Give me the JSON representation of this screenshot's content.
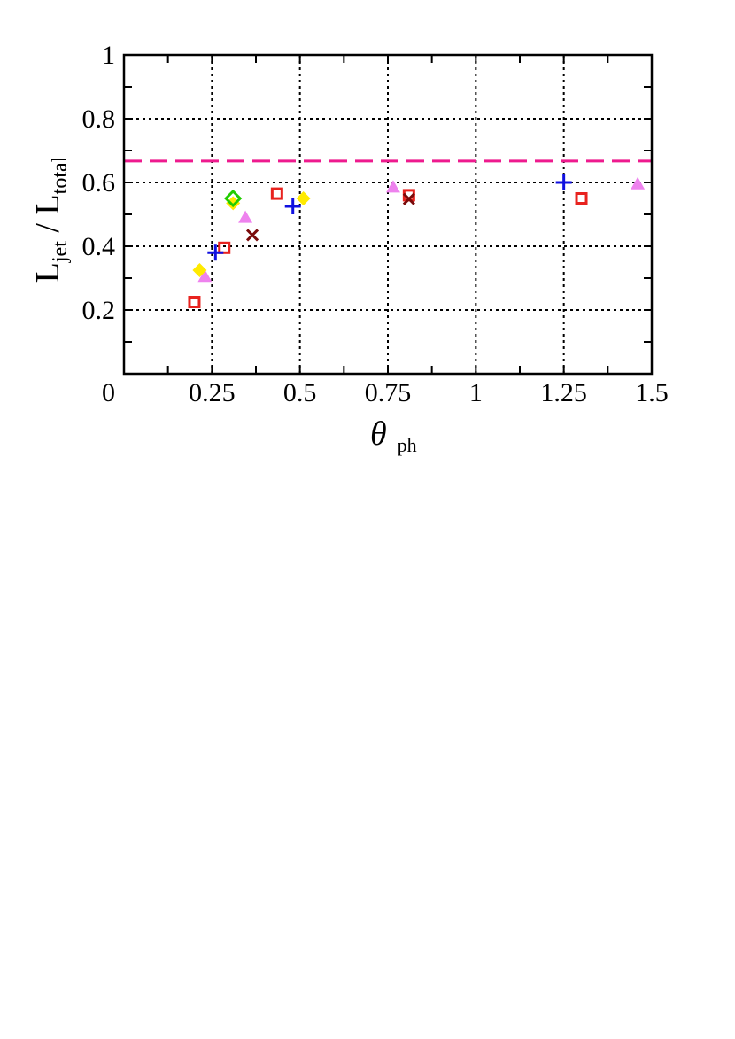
{
  "chart_data": {
    "type": "scatter",
    "title": "",
    "xlabel": "θ",
    "xlabel_sub": "ph",
    "ylabel_main1": "L",
    "ylabel_sub1": "jet",
    "ylabel_sep": " / ",
    "ylabel_main2": "L",
    "ylabel_sub2": "total",
    "xlim": [
      0,
      1.5
    ],
    "ylim": [
      0,
      1
    ],
    "xticks": [
      0,
      0.25,
      0.5,
      0.75,
      1,
      1.25,
      1.5
    ],
    "xtick_labels": [
      "0",
      "0.25",
      "0.5",
      "0.75",
      "1",
      "1.25",
      "1.5"
    ],
    "yticks": [
      0.2,
      0.4,
      0.6,
      0.8,
      1.0
    ],
    "ytick_labels": [
      "0.2",
      "0.4",
      "0.6",
      "0.8",
      "1"
    ],
    "grid": true,
    "reference_line": {
      "y": 0.667,
      "color": "#ee1a8e",
      "style": "dashed"
    },
    "series": [
      {
        "marker": "open-square",
        "color": "#e8231f",
        "points": [
          [
            0.2,
            0.225
          ],
          [
            0.285,
            0.395
          ],
          [
            0.435,
            0.565
          ],
          [
            0.81,
            0.56
          ],
          [
            1.3,
            0.55
          ]
        ]
      },
      {
        "marker": "plus",
        "color": "#1010e0",
        "points": [
          [
            0.26,
            0.38
          ],
          [
            0.48,
            0.525
          ],
          [
            1.25,
            0.6
          ]
        ]
      },
      {
        "marker": "filled-triangle",
        "color": "#ee82ee",
        "points": [
          [
            0.23,
            0.305
          ],
          [
            0.345,
            0.49
          ],
          [
            0.765,
            0.585
          ],
          [
            1.46,
            0.595
          ]
        ]
      },
      {
        "marker": "filled-diamond",
        "color": "#ffea00",
        "points": [
          [
            0.215,
            0.325
          ],
          [
            0.31,
            0.535
          ],
          [
            0.51,
            0.55
          ]
        ]
      },
      {
        "marker": "open-diamond",
        "color": "#22cc00",
        "points": [
          [
            0.31,
            0.55
          ]
        ]
      },
      {
        "marker": "cross",
        "color": "#7a0a0a",
        "points": [
          [
            0.365,
            0.435
          ],
          [
            0.81,
            0.548
          ]
        ]
      }
    ]
  }
}
